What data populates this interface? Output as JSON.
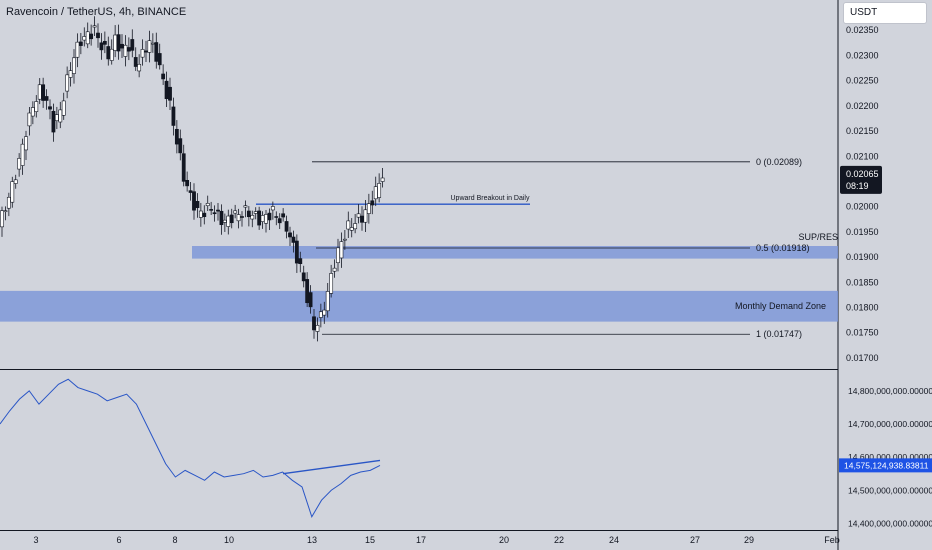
{
  "header": {
    "symbol": "Ravencoin / TetherUS",
    "interval": "4h",
    "exchange": "BINANCE",
    "currency_label": "USDT"
  },
  "colors": {
    "background": "#d1d4dc",
    "zone_fill": "#7f98d8",
    "trend_line": "#2a56c6",
    "axis_text": "#131722",
    "price_tag": "#131722",
    "indicator_tag": "#1e53e5"
  },
  "chart_data": [
    {
      "type": "candlestick",
      "title": "Ravencoin / TetherUS, 4h, BINANCE",
      "x_labels": [
        "3",
        "6",
        "8",
        "10",
        "13",
        "15",
        "17",
        "20",
        "22",
        "24",
        "27",
        "29",
        "Feb"
      ],
      "y_ticks": [
        "0.01700",
        "0.01750",
        "0.01800",
        "0.01850",
        "0.01900",
        "0.01950",
        "0.02000",
        "0.02050",
        "0.02100",
        "0.02150",
        "0.02200",
        "0.02250",
        "0.02300",
        "0.02350"
      ],
      "ylim": [
        0.0168,
        0.0241
      ],
      "last_price": "0.02065",
      "countdown": "08:19",
      "close_path": [
        0.0196,
        0.02,
        0.0204,
        0.0209,
        0.0215,
        0.022,
        0.0223,
        0.0221,
        0.0216,
        0.0219,
        0.0225,
        0.023,
        0.0233,
        0.0234,
        0.0235,
        0.0232,
        0.023,
        0.0233,
        0.0231,
        0.0232,
        0.0228,
        0.023,
        0.0233,
        0.023,
        0.0225,
        0.022,
        0.0213,
        0.0206,
        0.0202,
        0.0199,
        0.0199,
        0.02,
        0.0198,
        0.0197,
        0.0198,
        0.01985,
        0.0199,
        0.01985,
        0.01975,
        0.0198,
        0.0199,
        0.01975,
        0.0196,
        0.0192,
        0.0188,
        0.0182,
        0.0176,
        0.0178,
        0.0183,
        0.0189,
        0.0193,
        0.0196,
        0.0197,
        0.0198,
        0.02,
        0.0203,
        0.02065
      ],
      "fibonacci": [
        {
          "level": "0",
          "value": "0.02089"
        },
        {
          "level": "0.5",
          "value": "0.01918"
        },
        {
          "level": "1",
          "value": "0.01747"
        }
      ],
      "fib_prices": [
        0.02089,
        0.01918,
        0.01747
      ],
      "zones": [
        {
          "label": "SUP/RES",
          "low": 0.01897,
          "high": 0.01922
        },
        {
          "label": "Monthly Demand Zone",
          "low": 0.01772,
          "high": 0.01833
        }
      ],
      "annotations": [
        {
          "text": "Upward Breakout in Daily",
          "price": 0.02005
        }
      ]
    },
    {
      "type": "line",
      "y_ticks": [
        "14,400,000,000.00000",
        "14,500,000,000.00000",
        "14,600,000,000.00000",
        "14,700,000,000.00000",
        "14,800,000,000.00000"
      ],
      "ylim": [
        14380000000,
        14860000000
      ],
      "last_value": "14,575,124,938.83811",
      "values": [
        14700000000,
        14740000000,
        14775000000,
        14800000000,
        14760000000,
        14790000000,
        14820000000,
        14835000000,
        14810000000,
        14800000000,
        14790000000,
        14770000000,
        14780000000,
        14790000000,
        14760000000,
        14700000000,
        14640000000,
        14580000000,
        14540000000,
        14560000000,
        14545000000,
        14530000000,
        14555000000,
        14540000000,
        14545000000,
        14550000000,
        14560000000,
        14540000000,
        14545000000,
        14555000000,
        14530000000,
        14510000000,
        14420000000,
        14470000000,
        14500000000,
        14520000000,
        14545000000,
        14555000000,
        14560000000,
        14575000000
      ],
      "divergence_line": [
        14550000000,
        14590000000
      ]
    }
  ]
}
